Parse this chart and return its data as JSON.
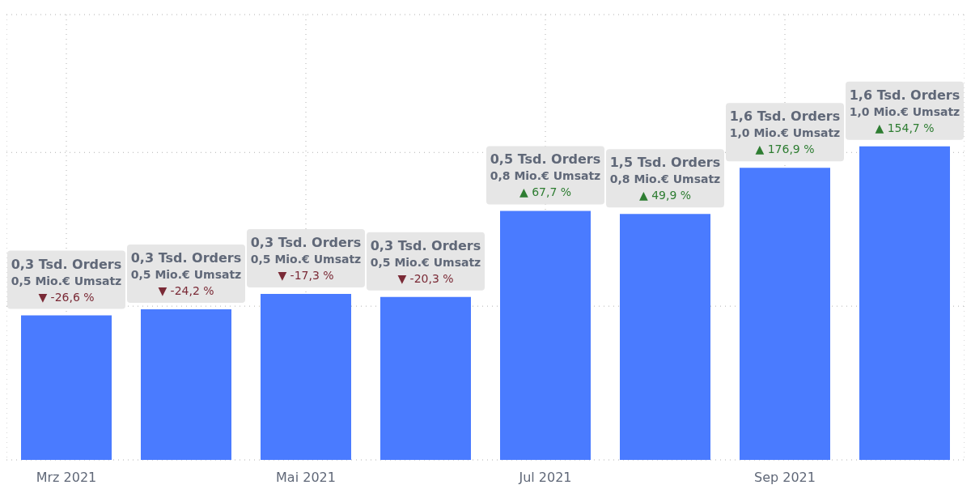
{
  "chart_data": {
    "type": "bar",
    "tick_labels": "x",
    "categories": [
      "Mrz 2021",
      null,
      "Mai 2021",
      null,
      "Jul 2021",
      null,
      "Sep 2021",
      null
    ],
    "values": [
      0.47,
      0.49,
      0.54,
      0.53,
      0.81,
      0.8,
      0.95,
      1.02
    ],
    "color": "#4a7bff",
    "grid": true,
    "value_labels": [
      "0,3 Tsd. Orders\n0,5 Mio.€ Umsatz\n▼ -26,6 %",
      "0,3 Tsd. Orders\n0,5 Mio.€ Umsatz\n▼ -24,2 %",
      "0,3 Tsd. Orders\n0,5 Mio.€ Umsatz\n▼ -17,3 %",
      "0,3 Tsd. Orders\n0,5 Mio.€ Umsatz\n▼ -20,3 %",
      "0,5 Tsd. Orders\n0,8 Mio.€ Umsatz\n▲ 67,7 %",
      "1,5 Tsd. Orders\n0,8 Mio.€ Umsatz\n▲ 49,9 %",
      "1,6 Tsd. Orders\n1,0 Mio.€ Umsatz\n▲ 176,9 %",
      "1,6 Tsd. Orders\n1,0 Mio.€ Umsatz\n▲ 154,7 %"
    ]
  }
}
